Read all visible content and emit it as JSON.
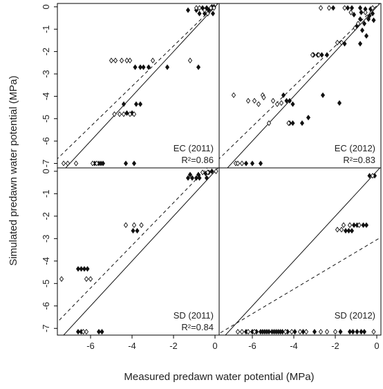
{
  "figure": {
    "xlabel": "Measured predawn water potential (MPa)",
    "ylabel": "Simulated predawn water potential (MPa)",
    "xticks": [
      -6,
      -4,
      -2,
      0
    ],
    "yticks": [
      0,
      -1,
      -2,
      -3,
      -4,
      -5,
      -6,
      -7
    ]
  },
  "chart_data": [
    {
      "type": "scatter",
      "panel": "top-left",
      "label": "EC (2011)",
      "r2_label": "R²=0.86",
      "xlim": [
        -7.6,
        0.2
      ],
      "ylim": [
        -7.2,
        0.15
      ],
      "series": [
        {
          "marker": "filled",
          "points": [
            [
              -5.8,
              -7.0
            ],
            [
              -5.6,
              -7.0
            ],
            [
              -5.5,
              -7.0
            ],
            [
              -5.4,
              -7.0
            ],
            [
              -4.3,
              -7.0
            ],
            [
              -3.9,
              -7.0
            ],
            [
              -4.4,
              -4.35
            ],
            [
              -3.8,
              -4.35
            ],
            [
              -3.6,
              -4.35
            ],
            [
              -4.25,
              -4.75
            ],
            [
              -4.0,
              -4.75
            ],
            [
              -3.85,
              -2.7
            ],
            [
              -3.6,
              -2.7
            ],
            [
              -3.45,
              -2.7
            ],
            [
              -3.2,
              -2.7
            ],
            [
              -2.3,
              -2.7
            ],
            [
              -0.8,
              -2.7
            ],
            [
              -0.2,
              -0.05
            ],
            [
              -0.4,
              -0.05
            ],
            [
              -0.6,
              -0.05
            ],
            [
              -0.05,
              0.0
            ],
            [
              -0.3,
              -0.15
            ],
            [
              -0.5,
              -0.3
            ],
            [
              -0.75,
              -0.3
            ],
            [
              -0.9,
              -0.15
            ],
            [
              -1.3,
              -0.15
            ],
            [
              -0.1,
              -0.3
            ],
            [
              -0.15,
              0.0
            ]
          ]
        },
        {
          "marker": "open",
          "points": [
            [
              -7.3,
              -7.0
            ],
            [
              -7.1,
              -7.0
            ],
            [
              -6.7,
              -7.0
            ],
            [
              -5.9,
              -7.0
            ],
            [
              -5.7,
              -7.0
            ],
            [
              -5.0,
              -2.4
            ],
            [
              -4.8,
              -2.4
            ],
            [
              -4.5,
              -2.4
            ],
            [
              -4.25,
              -2.4
            ],
            [
              -4.1,
              -2.4
            ],
            [
              -3.0,
              -2.4
            ],
            [
              -1.2,
              -2.4
            ],
            [
              -4.85,
              -4.8
            ],
            [
              -4.6,
              -4.8
            ],
            [
              -4.4,
              -4.8
            ],
            [
              -4.1,
              -4.8
            ],
            [
              -3.9,
              -4.8
            ],
            [
              -0.9,
              -0.05
            ],
            [
              -0.75,
              -0.05
            ],
            [
              -0.5,
              -0.15
            ],
            [
              -0.2,
              -0.05
            ],
            [
              -0.05,
              -0.05
            ],
            [
              -0.35,
              -0.3
            ]
          ]
        }
      ],
      "lines": [
        {
          "style": "solid",
          "slope": 1.0,
          "intercept": 0.0
        },
        {
          "style": "dashed",
          "slope": 0.9,
          "intercept": 0.05
        }
      ]
    },
    {
      "type": "scatter",
      "panel": "top-right",
      "label": "EC (2012)",
      "r2_label": "R²=0.83",
      "xlim": [
        -7.6,
        0.2
      ],
      "ylim": [
        -7.2,
        0.15
      ],
      "series": [
        {
          "marker": "filled",
          "points": [
            [
              -6.3,
              -7.0
            ],
            [
              -6.0,
              -7.0
            ],
            [
              -5.6,
              -7.0
            ],
            [
              -4.5,
              -3.95
            ],
            [
              -4.35,
              -4.2
            ],
            [
              -4.2,
              -4.2
            ],
            [
              -4.05,
              -4.35
            ],
            [
              -4.2,
              -5.2
            ],
            [
              -4.05,
              -5.2
            ],
            [
              -3.6,
              -5.2
            ],
            [
              -3.3,
              -4.95
            ],
            [
              -2.6,
              -3.95
            ],
            [
              -1.8,
              -4.3
            ],
            [
              -3.05,
              -2.15
            ],
            [
              -2.85,
              -2.15
            ],
            [
              -2.65,
              -2.15
            ],
            [
              -2.4,
              -2.15
            ],
            [
              -1.55,
              -1.65
            ],
            [
              -0.8,
              -1.65
            ],
            [
              -0.7,
              -1.05
            ],
            [
              -0.5,
              -1.3
            ],
            [
              -0.95,
              -0.85
            ],
            [
              -0.6,
              -0.75
            ],
            [
              -0.4,
              -0.55
            ],
            [
              -0.8,
              -0.55
            ],
            [
              -1.1,
              -0.35
            ],
            [
              -0.75,
              -0.25
            ],
            [
              -0.3,
              -0.1
            ],
            [
              -0.55,
              -0.1
            ],
            [
              -0.8,
              -0.05
            ],
            [
              -1.2,
              -0.05
            ],
            [
              -1.4,
              -0.05
            ],
            [
              -2.1,
              -0.05
            ],
            [
              -0.15,
              -0.6
            ],
            [
              -0.2,
              -0.3
            ],
            [
              -0.35,
              -0.4
            ]
          ]
        },
        {
          "marker": "open",
          "points": [
            [
              -6.8,
              -7.0
            ],
            [
              -6.7,
              -7.0
            ],
            [
              -6.5,
              -7.0
            ],
            [
              -6.9,
              -3.95
            ],
            [
              -5.5,
              -3.95
            ],
            [
              -5.45,
              -4.05
            ],
            [
              -6.2,
              -4.2
            ],
            [
              -5.9,
              -4.2
            ],
            [
              -5.7,
              -4.35
            ],
            [
              -5.0,
              -4.2
            ],
            [
              -4.8,
              -4.35
            ],
            [
              -4.6,
              -4.3
            ],
            [
              -5.2,
              -5.2
            ],
            [
              -4.25,
              -5.2
            ],
            [
              -3.1,
              -2.15
            ],
            [
              -2.8,
              -2.15
            ],
            [
              -1.9,
              -1.6
            ],
            [
              -1.7,
              -1.6
            ],
            [
              -1.05,
              -0.95
            ],
            [
              -0.9,
              -0.75
            ],
            [
              -0.2,
              -0.05
            ],
            [
              -0.55,
              -0.25
            ],
            [
              -1.25,
              -0.25
            ],
            [
              -1.55,
              -0.05
            ],
            [
              -2.3,
              -0.05
            ],
            [
              -2.7,
              -0.05
            ]
          ]
        }
      ],
      "lines": [
        {
          "style": "solid",
          "slope": 1.0,
          "intercept": 0.0
        },
        {
          "style": "dashed",
          "slope": 0.9,
          "intercept": 0.05
        }
      ]
    },
    {
      "type": "scatter",
      "panel": "bottom-left",
      "label": "SD (2011)",
      "r2_label": "R²=0.84",
      "xlim": [
        -7.6,
        0.2
      ],
      "ylim": [
        -7.3,
        0.15
      ],
      "series": [
        {
          "marker": "filled",
          "points": [
            [
              -6.6,
              -7.15
            ],
            [
              -6.45,
              -7.15
            ],
            [
              -5.6,
              -7.15
            ],
            [
              -5.45,
              -7.15
            ],
            [
              -6.6,
              -4.35
            ],
            [
              -6.45,
              -4.35
            ],
            [
              -6.3,
              -4.35
            ],
            [
              -6.15,
              -4.35
            ],
            [
              -3.95,
              -2.65
            ],
            [
              -3.75,
              -2.65
            ],
            [
              -1.3,
              -0.3
            ],
            [
              -1.1,
              -0.3
            ],
            [
              -0.9,
              -0.3
            ],
            [
              -0.75,
              -0.3
            ],
            [
              -0.4,
              -0.3
            ],
            [
              -1.2,
              -0.15
            ],
            [
              -0.8,
              -0.15
            ],
            [
              -0.3,
              -0.05
            ],
            [
              -0.15,
              0.0
            ],
            [
              -0.45,
              -0.1
            ]
          ]
        },
        {
          "marker": "open",
          "points": [
            [
              -7.4,
              -4.8
            ],
            [
              -6.2,
              -4.8
            ],
            [
              -6.0,
              -4.8
            ],
            [
              -6.35,
              -7.15
            ],
            [
              -6.2,
              -7.15
            ],
            [
              -4.3,
              -2.4
            ],
            [
              -3.9,
              -2.4
            ],
            [
              -3.55,
              -2.4
            ],
            [
              -0.6,
              -0.05
            ],
            [
              -0.35,
              -0.05
            ],
            [
              0.05,
              0.0
            ]
          ]
        }
      ],
      "lines": [
        {
          "style": "solid",
          "slope": 1.0,
          "intercept": 0.0
        },
        {
          "style": "dashed",
          "slope": 0.95,
          "intercept": 0.5
        }
      ]
    },
    {
      "type": "scatter",
      "panel": "bottom-right",
      "label": "SD (2012)",
      "r2_label": "",
      "xlim": [
        -7.6,
        0.2
      ],
      "ylim": [
        -7.3,
        0.15
      ],
      "series": [
        {
          "marker": "filled",
          "points": [
            [
              -6.3,
              -7.15
            ],
            [
              -6.0,
              -7.15
            ],
            [
              -5.8,
              -7.15
            ],
            [
              -5.6,
              -7.15
            ],
            [
              -5.5,
              -7.15
            ],
            [
              -5.4,
              -7.15
            ],
            [
              -5.3,
              -7.15
            ],
            [
              -5.2,
              -7.15
            ],
            [
              -5.05,
              -7.15
            ],
            [
              -4.95,
              -7.15
            ],
            [
              -4.85,
              -7.15
            ],
            [
              -4.75,
              -7.15
            ],
            [
              -4.65,
              -7.15
            ],
            [
              -4.55,
              -7.15
            ],
            [
              -4.3,
              -7.15
            ],
            [
              -3.95,
              -7.15
            ],
            [
              -3.55,
              -7.15
            ],
            [
              -3.0,
              -7.15
            ],
            [
              -1.75,
              -7.15
            ],
            [
              -1.3,
              -7.15
            ],
            [
              -1.15,
              -7.15
            ],
            [
              -0.95,
              -7.15
            ],
            [
              -0.75,
              -7.15
            ],
            [
              -0.6,
              -7.15
            ],
            [
              -1.5,
              -2.65
            ],
            [
              -1.35,
              -2.65
            ],
            [
              -1.2,
              -2.65
            ],
            [
              -1.1,
              -2.4
            ],
            [
              -0.95,
              -2.4
            ],
            [
              -0.65,
              -2.4
            ],
            [
              -0.5,
              -2.4
            ],
            [
              -0.35,
              -0.2
            ],
            [
              -0.1,
              -0.2
            ]
          ]
        },
        {
          "marker": "open",
          "points": [
            [
              -6.7,
              -7.15
            ],
            [
              -6.5,
              -7.15
            ],
            [
              -6.2,
              -7.15
            ],
            [
              -5.9,
              -7.15
            ],
            [
              -4.4,
              -7.15
            ],
            [
              -4.1,
              -7.15
            ],
            [
              -3.7,
              -7.15
            ],
            [
              -3.4,
              -7.15
            ],
            [
              -2.7,
              -7.15
            ],
            [
              -2.4,
              -7.15
            ],
            [
              -2.0,
              -7.15
            ],
            [
              -0.15,
              -7.15
            ],
            [
              -1.9,
              -2.6
            ],
            [
              -1.7,
              -2.6
            ],
            [
              -1.6,
              -2.4
            ],
            [
              -1.3,
              -2.4
            ],
            [
              -0.85,
              -2.4
            ],
            [
              -0.2,
              -0.2
            ]
          ]
        }
      ],
      "lines": [
        {
          "style": "solid",
          "slope": 1.0,
          "intercept": 0.0
        },
        {
          "style": "dashed",
          "slope": 0.55,
          "intercept": -3.05
        }
      ]
    }
  ]
}
